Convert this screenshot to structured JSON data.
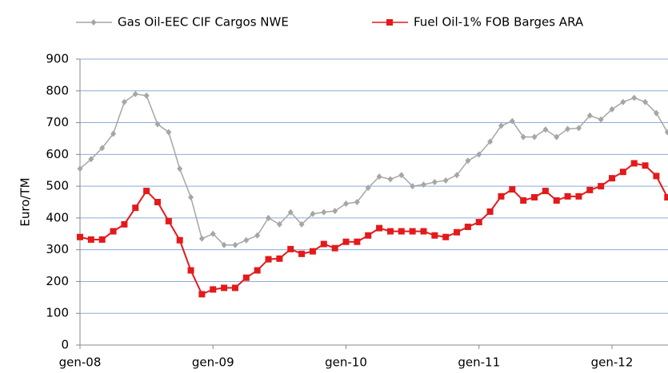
{
  "chart_data": {
    "type": "line",
    "categories": [
      "gen-08",
      null,
      null,
      null,
      null,
      null,
      null,
      null,
      null,
      null,
      null,
      null,
      "gen-09",
      null,
      null,
      null,
      null,
      null,
      null,
      null,
      null,
      null,
      null,
      null,
      "gen-10",
      null,
      null,
      null,
      null,
      null,
      null,
      null,
      null,
      null,
      null,
      null,
      "gen-11",
      null,
      null,
      null,
      null,
      null,
      null,
      null,
      null,
      null,
      null,
      null,
      "gen-12",
      null,
      null,
      null,
      null,
      null
    ],
    "series": [
      {
        "name": "Gas Oil-EEC CIF Cargos NWE",
        "color": "#a6a6a6",
        "marker": "diamond",
        "values": [
          555,
          585,
          620,
          665,
          765,
          790,
          785,
          695,
          670,
          555,
          465,
          335,
          350,
          315,
          315,
          330,
          345,
          400,
          380,
          418,
          380,
          413,
          418,
          422,
          445,
          450,
          495,
          530,
          522,
          535,
          500,
          505,
          513,
          518,
          535,
          580,
          600,
          640,
          690,
          705,
          655,
          655,
          678,
          655,
          680,
          683,
          722,
          710,
          742,
          765,
          778,
          765,
          730,
          670
        ]
      },
      {
        "name": "Fuel Oil-1% FOB Barges ARA",
        "color": "#e31a1c",
        "marker": "square",
        "values": [
          340,
          332,
          332,
          358,
          380,
          432,
          485,
          450,
          390,
          330,
          235,
          160,
          175,
          180,
          180,
          212,
          235,
          270,
          272,
          302,
          287,
          295,
          318,
          305,
          325,
          325,
          345,
          368,
          358,
          358,
          358,
          358,
          345,
          340,
          355,
          372,
          387,
          420,
          468,
          490,
          455,
          465,
          485,
          455,
          468,
          468,
          488,
          500,
          525,
          545,
          572,
          565,
          532,
          465
        ]
      }
    ],
    "y_label": "Euro/TM",
    "ylim": [
      0,
      900
    ],
    "yticks": [
      0,
      100,
      200,
      300,
      400,
      500,
      600,
      700,
      800,
      900
    ],
    "grid": true
  }
}
